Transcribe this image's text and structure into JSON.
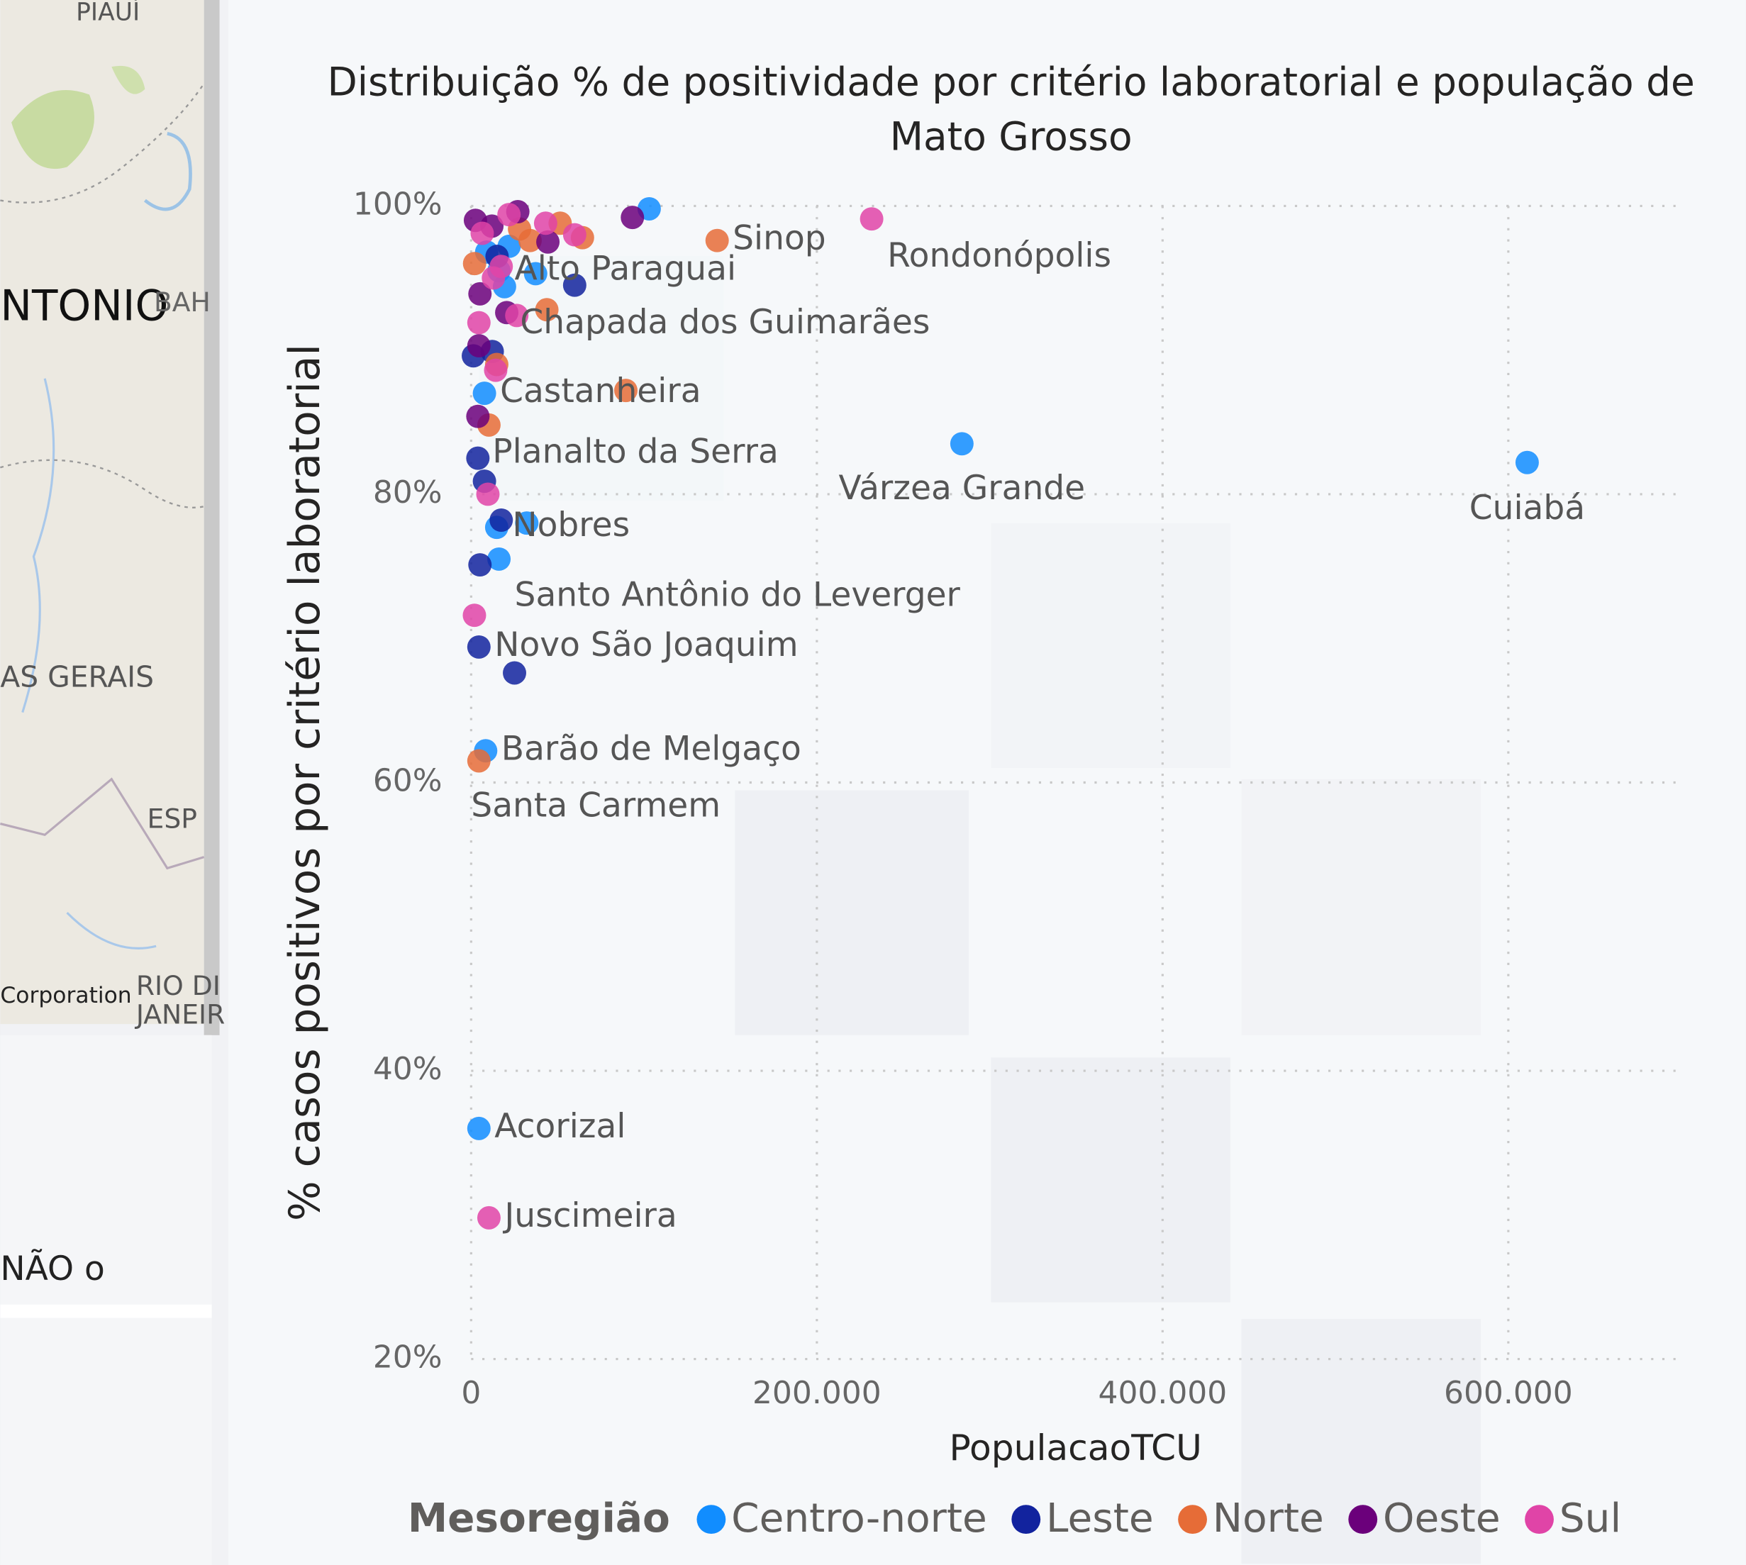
{
  "map": {
    "labels": [
      "PIAUÍ",
      "NTONIO",
      "BAH",
      "AS GERAIS",
      "ESP",
      "RIO DI",
      "JANEIR",
      "Corporation"
    ]
  },
  "slicer": {
    "text": "NÃO o"
  },
  "chart_data": {
    "type": "scatter",
    "title": [
      "Distribuição % de positividade por critério laboratorial e população de",
      "Mato Grosso"
    ],
    "x_label": "PopulacaoTCU",
    "y_label": "% casos positivos por critério laboratorial",
    "legend_title": "Mesoregião",
    "xlim": [
      0,
      700000
    ],
    "ylim": [
      20,
      100
    ],
    "xticks": [
      0,
      {
        "value": 200000,
        "label": "200.000"
      },
      {
        "value": 400000,
        "label": "400.000"
      },
      {
        "value": 600000,
        "label": "600.000"
      }
    ],
    "yticks": [
      {
        "value": 20,
        "label": "20%"
      },
      {
        "value": 40,
        "label": "40%"
      },
      {
        "value": 60,
        "label": "60%"
      },
      {
        "value": 80,
        "label": "80%"
      },
      {
        "value": 100,
        "label": "100%"
      }
    ],
    "grid": true,
    "series": [
      {
        "name": "Centro-norte",
        "color": "#118DFF",
        "x": [
          610900,
          283900,
          16100,
          7700,
          14800,
          16100,
          8400,
          4500,
          103000,
          37300,
          19300,
          32200,
          9000,
          22000
        ],
        "values": [
          82.2,
          83.5,
          95.5,
          87.0,
          77.7,
          75.5,
          62.2,
          36.0,
          99.8,
          95.3,
          94.4,
          78.0,
          96.8,
          97.2
        ],
        "point_labels": [
          "Cuiabá",
          "Várzea Grande",
          "Alto Paraguai",
          "Castanheira",
          "Nobres",
          "Santo Antônio do Leverger",
          "Barão de Melgaço",
          "Acorizal",
          null,
          null,
          null,
          null,
          null,
          null
        ]
      },
      {
        "name": "Leste",
        "color": "#12239E",
        "x": [
          3900,
          4500,
          59900,
          17400,
          5100,
          25100,
          7700,
          12200,
          1300,
          15000
        ],
        "values": [
          82.5,
          69.4,
          94.5,
          78.2,
          75.1,
          67.6,
          80.9,
          89.9,
          89.6,
          96.5
        ],
        "point_labels": [
          "Planalto da Serra",
          "Novo São Joaquim",
          null,
          null,
          null,
          null,
          null,
          null,
          null,
          null
        ]
      },
      {
        "name": "Norte",
        "color": "#E66C37",
        "x": [
          142300,
          4500,
          89500,
          43800,
          64400,
          51500,
          10300,
          14800,
          34100,
          2000,
          28000
        ],
        "values": [
          97.6,
          61.5,
          87.2,
          92.8,
          97.8,
          98.8,
          84.8,
          89.0,
          97.6,
          96.0,
          98.4
        ],
        "point_labels": [
          "Sinop",
          "Santa Carmem",
          null,
          null,
          null,
          null,
          null,
          null,
          null,
          null,
          null
        ]
      },
      {
        "name": "Oeste",
        "color": "#6B007B",
        "x": [
          93300,
          44400,
          20600,
          3900,
          4500,
          27000,
          5100,
          2500,
          12000
        ],
        "values": [
          99.2,
          97.5,
          92.6,
          85.4,
          90.3,
          99.6,
          93.9,
          99.0,
          98.6
        ],
        "point_labels": [
          null,
          null,
          null,
          null,
          null,
          null,
          null,
          null,
          null
        ]
      },
      {
        "name": "Sul",
        "color": "#E044A7",
        "x": [
          231700,
          26400,
          10300,
          59900,
          43100,
          21900,
          14200,
          9700,
          1900,
          12900,
          4500,
          6400,
          17400
        ],
        "values": [
          99.1,
          92.4,
          29.8,
          98.0,
          98.8,
          99.4,
          88.6,
          80.0,
          71.6,
          95.0,
          91.9,
          98.1,
          95.8
        ],
        "point_labels": [
          "Rondonópolis",
          "Chapada dos Guimarães",
          "Juscimeira",
          null,
          null,
          null,
          null,
          null,
          null,
          null,
          null,
          null,
          null
        ]
      }
    ]
  }
}
